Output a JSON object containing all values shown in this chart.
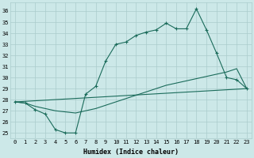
{
  "xlabel": "Humidex (Indice chaleur)",
  "bg_color": "#cce8e8",
  "grid_color": "#aacccc",
  "line_color": "#1a6b5a",
  "xlim": [
    -0.5,
    23.5
  ],
  "ylim": [
    24.5,
    36.8
  ],
  "yticks": [
    25,
    26,
    27,
    28,
    29,
    30,
    31,
    32,
    33,
    34,
    35,
    36
  ],
  "xticks": [
    0,
    1,
    2,
    3,
    4,
    5,
    6,
    7,
    8,
    9,
    10,
    11,
    12,
    13,
    14,
    15,
    16,
    17,
    18,
    19,
    20,
    21,
    22,
    23
  ],
  "line1_x": [
    0,
    1,
    2,
    3,
    4,
    5,
    6,
    7,
    8,
    9,
    10,
    11,
    12,
    13,
    14,
    15,
    16,
    17,
    18,
    19,
    20,
    21,
    22,
    23
  ],
  "line1_y": [
    27.8,
    27.7,
    27.1,
    26.7,
    25.3,
    25.0,
    25.0,
    28.5,
    29.2,
    31.5,
    33.0,
    33.2,
    33.8,
    34.1,
    34.3,
    34.9,
    34.4,
    34.4,
    36.2,
    34.3,
    32.2,
    30.0,
    29.8,
    29.0
  ],
  "line2_x": [
    0,
    23
  ],
  "line2_y": [
    27.8,
    29.0
  ],
  "line3_x": [
    0,
    1,
    2,
    3,
    4,
    5,
    6,
    7,
    8,
    9,
    10,
    11,
    12,
    13,
    14,
    15,
    16,
    17,
    18,
    19,
    20,
    21,
    22,
    23
  ],
  "line3_y": [
    27.8,
    27.7,
    27.4,
    27.2,
    27.0,
    26.9,
    26.8,
    27.0,
    27.2,
    27.5,
    27.8,
    28.1,
    28.4,
    28.7,
    29.0,
    29.3,
    29.5,
    29.7,
    29.9,
    30.1,
    30.3,
    30.5,
    30.8,
    29.0
  ]
}
